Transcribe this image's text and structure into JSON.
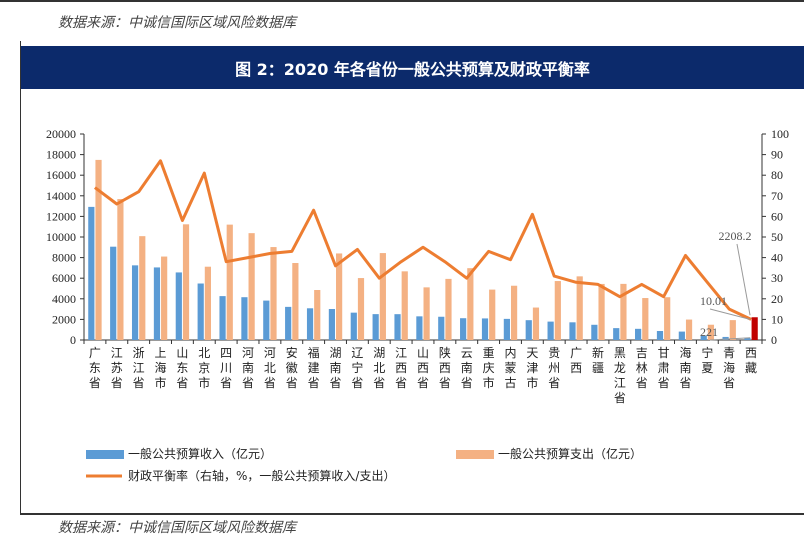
{
  "source_top": "数据来源：中诚信国际区域风险数据库",
  "source_bottom": "数据来源：中诚信国际区域风险数据库",
  "chart_data": {
    "type": "bar",
    "title": "图 2：2020 年各省份一般公共预算及财政平衡率",
    "categories": [
      "广东省",
      "江苏省",
      "浙江省",
      "上海市",
      "山东省",
      "北京市",
      "四川省",
      "河南省",
      "河北省",
      "安徽省",
      "福建省",
      "湖南省",
      "辽宁省",
      "湖北省",
      "江西省",
      "山西省",
      "陕西省",
      "云南省",
      "重庆市",
      "内蒙古",
      "天津市",
      "贵州省",
      "广西",
      "新疆",
      "黑龙江省",
      "吉林省",
      "甘肃省",
      "海南省",
      "宁夏",
      "青海省",
      "西藏"
    ],
    "series": [
      {
        "name": "一般公共预算收入（亿元）",
        "type": "bar",
        "axis": "left",
        "color": "#5b9bd5",
        "values": [
          12924,
          9059,
          7248,
          7046,
          6560,
          5484,
          4261,
          4155,
          3826,
          3216,
          3079,
          3009,
          2655,
          2512,
          2508,
          2297,
          2257,
          2116,
          2095,
          2051,
          1924,
          1786,
          1717,
          1477,
          1153,
          1085,
          874,
          817,
          419,
          298,
          221
        ]
      },
      {
        "name": "一般公共预算支出（亿元）",
        "type": "bar",
        "axis": "left",
        "color": "#f4b183",
        "values": [
          17485,
          13682,
          10082,
          8102,
          11232,
          7116,
          11201,
          10373,
          9022,
          7474,
          4854,
          8403,
          6014,
          8439,
          6666,
          5111,
          5934,
          6974,
          4893,
          5268,
          3151,
          5724,
          6179,
          5444,
          5449,
          4074,
          4154,
          1984,
          1483,
          1930,
          2208.2
        ]
      },
      {
        "name": "财政平衡率（右轴，%，一般公共预算收入/支出）",
        "type": "line",
        "axis": "right",
        "color": "#ed7d31",
        "values": [
          74,
          66,
          72,
          87,
          58,
          81,
          38,
          40,
          42,
          43,
          63,
          36,
          44,
          30,
          38,
          45,
          38,
          30,
          43,
          39,
          61,
          31,
          28,
          27,
          21,
          27,
          21,
          41,
          28,
          15,
          10.01
        ]
      }
    ],
    "y_left": {
      "min": 0,
      "max": 20000,
      "ticks": [
        0,
        2000,
        4000,
        6000,
        8000,
        10000,
        12000,
        14000,
        16000,
        18000,
        20000
      ]
    },
    "y_right": {
      "min": 0,
      "max": 100,
      "ticks": [
        0,
        10,
        20,
        30,
        40,
        50,
        60,
        70,
        80,
        90,
        100
      ]
    },
    "annotations": [
      {
        "text": "2208.2",
        "target": "西藏 支出"
      },
      {
        "text": "10.01",
        "target": "西藏 财政平衡率"
      },
      {
        "text": "221",
        "target": "西藏 收入"
      }
    ],
    "highlight": {
      "category": "西藏",
      "color": "#c00000"
    }
  }
}
